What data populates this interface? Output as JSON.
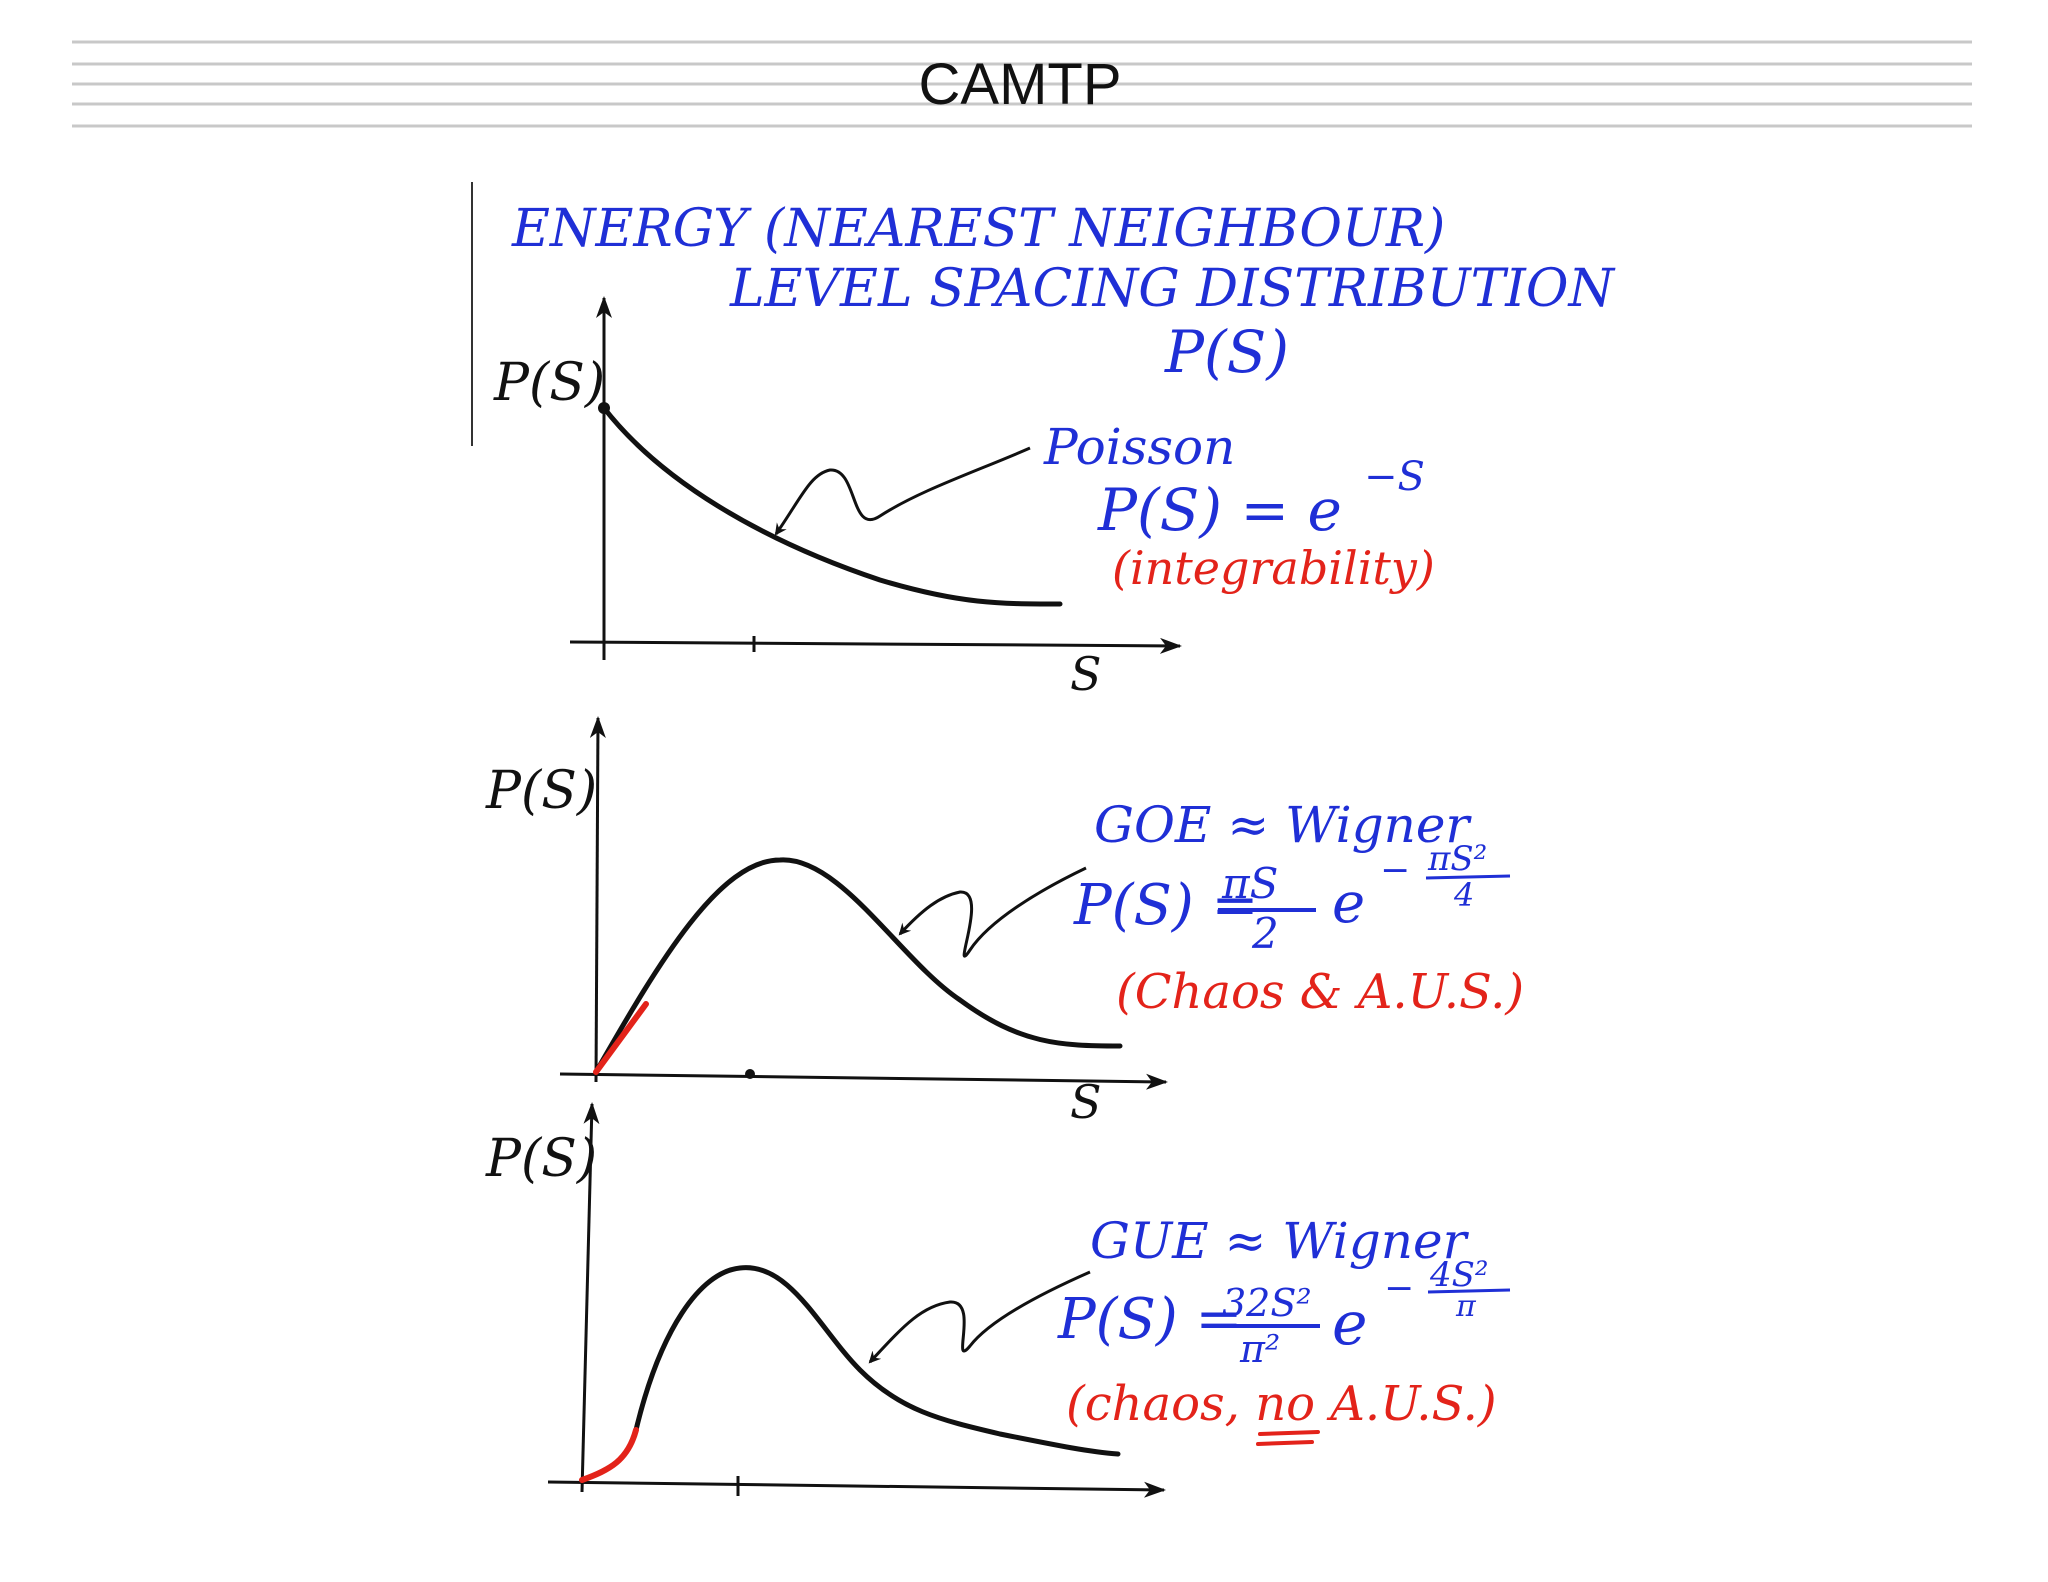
{
  "header": {
    "title": "CAMTP"
  },
  "heading": {
    "line1": "ENERGY (NEAREST NEIGHBOUR)",
    "line2": "LEVEL SPACING DISTRIBUTION",
    "line3": "P(S)"
  },
  "panels": [
    {
      "y_label": "P(S)",
      "x_label": "S",
      "name": "Poisson",
      "formula_lhs": "P(S) = e",
      "formula_exp": "−S",
      "regime": "(integrability)",
      "curve_color": "#111111"
    },
    {
      "y_label": "P(S)",
      "x_label": "S",
      "name": "GOE ≈ Wigner",
      "formula_lhs": "P(S) =",
      "formula_num": "πS",
      "formula_den": "2",
      "formula_e": "e",
      "formula_exp_sign": "−",
      "formula_exp_num": "πS²",
      "formula_exp_den": "4",
      "regime": "(Chaos & A.U.S.)",
      "curve_color": "#111111",
      "onset_color": "#e3231a"
    },
    {
      "y_label": "P(S)",
      "x_label": "",
      "name": "GUE ≈ Wigner",
      "formula_lhs": "P(S) =",
      "formula_num": "32S²",
      "formula_den": "π²",
      "formula_e": "e",
      "formula_exp_sign": "−",
      "formula_exp_num": "4S²",
      "formula_exp_den": "π",
      "regime_pre": "(chaos, ",
      "regime_emph": "no",
      "regime_post": " A.U.S.)",
      "curve_color": "#111111",
      "onset_color": "#e3231a"
    }
  ],
  "colors": {
    "ink_blue": "#1f2fd6",
    "ink_red": "#e3231a",
    "ink_black": "#111111",
    "rule_gray": "#c8c8c8"
  }
}
